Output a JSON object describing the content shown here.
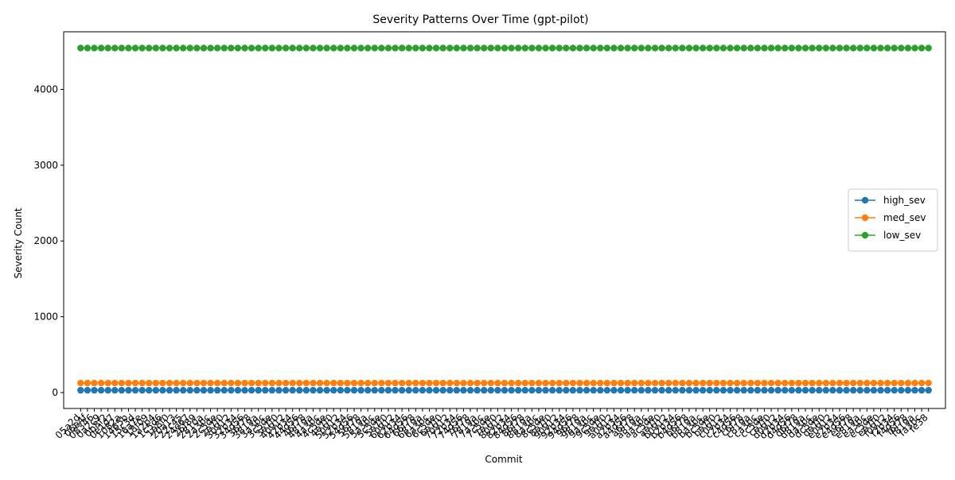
{
  "chart_data": {
    "type": "line",
    "title": "Severity Patterns Over Time (gpt-pilot)",
    "xlabel": "Commit",
    "ylabel": "Severity Count",
    "ylim": [
      -210,
      4760
    ],
    "yticks": [
      0,
      1000,
      2000,
      3000,
      4000
    ],
    "legend_position": "center-right",
    "grid": false,
    "categories": [
      "05a2d",
      "06e4f",
      "08346",
      "0a2c9",
      "0b8f2",
      "0e1d7",
      "1082a",
      "1465b",
      "15c3d",
      "16a7e",
      "18f09",
      "1a2b4",
      "1c5d6",
      "1e8f0",
      "20a13",
      "22c45",
      "24e67",
      "26f89",
      "2810a",
      "2a3bc",
      "2c5de",
      "2e7f0",
      "30912",
      "32b34",
      "34d56",
      "36f78",
      "3819a",
      "3a3bc",
      "3c5de",
      "3e7f0",
      "40912",
      "42b34",
      "44d56",
      "46f78",
      "4819a",
      "4a3bc",
      "4c5de",
      "4e7f0",
      "50912",
      "52b34",
      "54d56",
      "56f78",
      "5819a",
      "5a3bc",
      "5c5de",
      "5e7f0",
      "60912",
      "62b34",
      "64d56",
      "66f78",
      "6819a",
      "6a3bc",
      "6c5de",
      "6e7f0",
      "70912",
      "72b34",
      "74d56",
      "76f78",
      "7819a",
      "7a3bc",
      "7c5de",
      "7e7f0",
      "80912",
      "82b34",
      "84d56",
      "86f78",
      "8819a",
      "8a3bc",
      "8c5de",
      "8e7f0",
      "90912",
      "92b34",
      "94d56",
      "96f78",
      "9819a",
      "9a3bc",
      "9c5de",
      "9e7f0",
      "a0912",
      "a2b34",
      "a4d56",
      "a6f78",
      "a819a",
      "aa3bc",
      "ac5de",
      "ae7f0",
      "b0912",
      "b2b34",
      "b4d56",
      "b6f78",
      "b819a",
      "ba3bc",
      "bc5de",
      "be7f0",
      "c0912",
      "c2b34",
      "c4d56",
      "c6f78",
      "c819a",
      "ca3bc",
      "cc5de",
      "ce7f0",
      "d0912",
      "d2b34",
      "d4d56",
      "d6f78",
      "d819a",
      "da3bc",
      "dc5de",
      "de7f0",
      "e0912",
      "e2b34",
      "e4d56",
      "e6f78",
      "e819a",
      "ea3bc",
      "ec5de",
      "ee7f0",
      "f0912",
      "f2b34",
      "f4d56",
      "f6f78",
      "f819a",
      "fa3bc",
      "fe38"
    ],
    "series": [
      {
        "name": "high_sev",
        "color": "#1f77b4",
        "constant": 30
      },
      {
        "name": "med_sev",
        "color": "#ff7f0e",
        "constant": 125
      },
      {
        "name": "low_sev",
        "color": "#2ca02c",
        "constant": 4545
      }
    ]
  }
}
